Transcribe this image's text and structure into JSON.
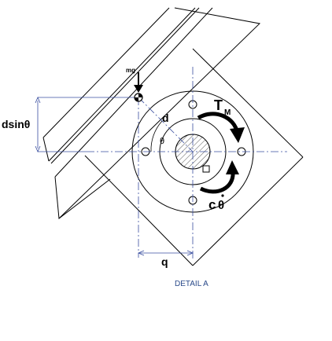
{
  "figure": {
    "labels": {
      "mg": "mg",
      "t": "T",
      "t_sub": "M",
      "d": "d",
      "theta": "θ",
      "dsin": "dsinθ",
      "c": "c",
      "theta_dot": "θ",
      "q": "q"
    },
    "caption": "DETAIL A"
  },
  "colors": {
    "line": "#000000",
    "dashdot": "#3a4fa0",
    "hatch": "#555555",
    "caption": "#2a4a8a"
  }
}
